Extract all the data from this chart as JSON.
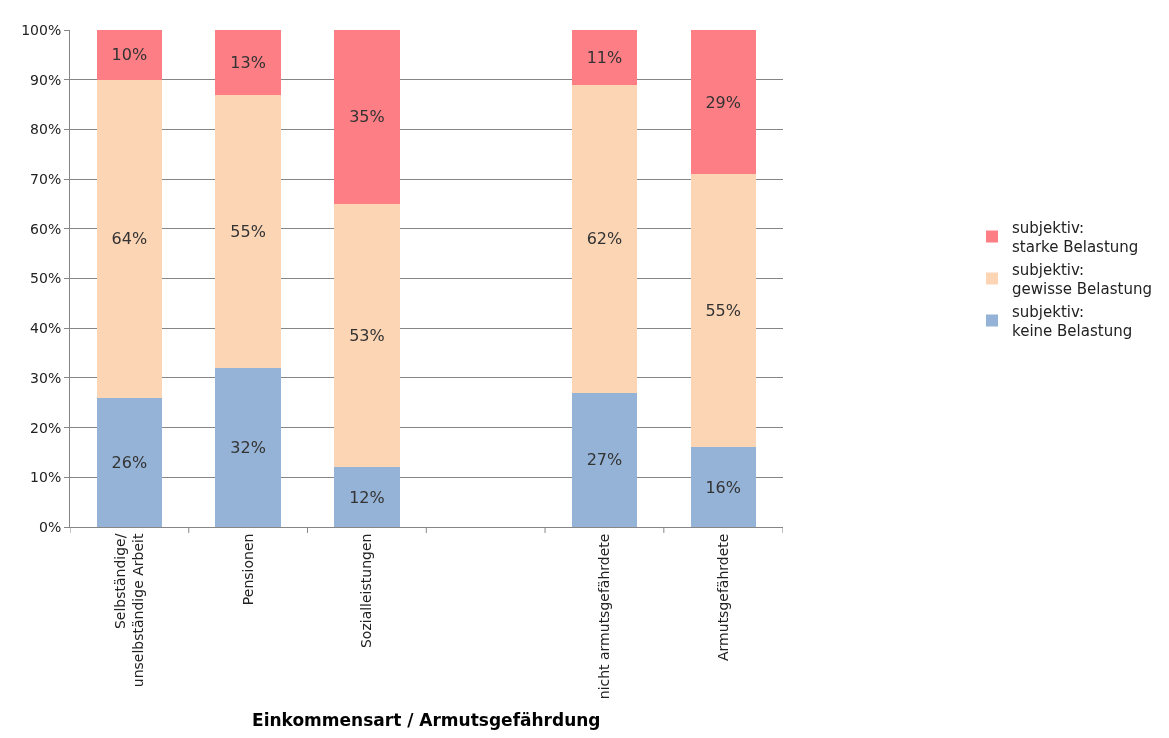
{
  "chart_data": {
    "type": "bar",
    "stacked": true,
    "xlabel": "Einkommensart / Armutsgefährdung",
    "categories": [
      "Selbständige/\nunselbständige Arbeit",
      "Pensionen",
      "Sozialleistungen",
      null,
      "nicht armutsgefährdete",
      "Armutsgefährdete"
    ],
    "series": [
      {
        "name": "subjektiv:\nkeine Belastung",
        "color": "#95b3d7",
        "values": [
          26,
          32,
          12,
          null,
          27,
          16
        ],
        "value_labels": [
          "26%",
          "32%",
          "12%",
          null,
          "27%",
          "16%"
        ]
      },
      {
        "name": "subjektiv:\ngewisse Belastung",
        "color": "#fcd5b5",
        "values": [
          64,
          55,
          53,
          null,
          62,
          55
        ],
        "value_labels": [
          "64%",
          "55%",
          "53%",
          null,
          "62%",
          "55%"
        ]
      },
      {
        "name": "subjektiv:\nstarke Belastung",
        "color": "#fd7f85",
        "values": [
          10,
          13,
          35,
          null,
          11,
          29
        ],
        "value_labels": [
          "10%",
          "13%",
          "35%",
          null,
          "11%",
          "29%"
        ]
      }
    ],
    "ylim": [
      0,
      100
    ],
    "yticks": [
      {
        "value": 0,
        "label": "0%"
      },
      {
        "value": 10,
        "label": "10%"
      },
      {
        "value": 20,
        "label": "20%"
      },
      {
        "value": 30,
        "label": "30%"
      },
      {
        "value": 40,
        "label": "40%"
      },
      {
        "value": 50,
        "label": "50%"
      },
      {
        "value": 60,
        "label": "60%"
      },
      {
        "value": 70,
        "label": "70%"
      },
      {
        "value": 80,
        "label": "80%"
      },
      {
        "value": 90,
        "label": "90%"
      },
      {
        "value": 100,
        "label": "100%"
      }
    ],
    "grid": "y",
    "legend": "right"
  }
}
